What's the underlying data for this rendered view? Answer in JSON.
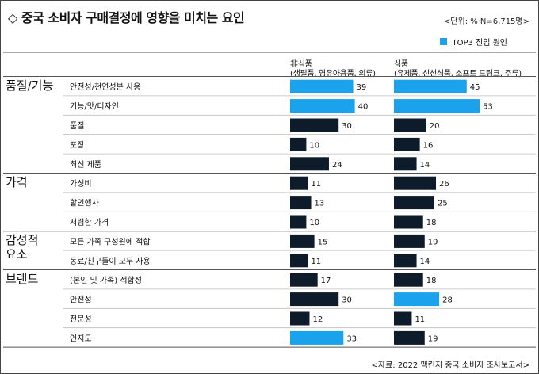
{
  "title": "◇ 중국 소비자 구매결정에 영향을 미치는 요인",
  "unit_note": "<단위: %·N=6,715명>",
  "legend": {
    "label": "TOP3 진입 원인",
    "color": "#1aa3ec"
  },
  "colors": {
    "top3": "#1aa3ec",
    "other": "#0d1b2a"
  },
  "columns": [
    {
      "line1": "非식품",
      "line2": "(생필품, 영유아용품, 의류)"
    },
    {
      "line1": "식품",
      "line2": "(유제품, 신선식품, 소프트 드링크, 주류)"
    }
  ],
  "source": "<자료: 2022 맥킨지 중국 소비자 조사보고서>",
  "chart_data": {
    "type": "bar",
    "groups": [
      {
        "name": "품질/기능",
        "items": [
          "안전성/천연성분 사용",
          "기능/맛/디자인",
          "품질",
          "포장",
          "최신 제품"
        ]
      },
      {
        "name": "가격",
        "items": [
          "가성비",
          "할인행사",
          "저렴한 가격"
        ]
      },
      {
        "name": "감성적\n요소",
        "items": [
          "모든 가족 구성원에 적합",
          "동료/친구들이 모두 사용"
        ]
      },
      {
        "name": "브랜드",
        "items": [
          "(본인 및 가족) 적합성",
          "안전성",
          "전문성",
          "인지도"
        ]
      }
    ],
    "categories": [
      "안전성/천연성분 사용",
      "기능/맛/디자인",
      "품질",
      "포장",
      "최신 제품",
      "가성비",
      "할인행사",
      "저렴한 가격",
      "모든 가족 구성원에 적합",
      "동료/친구들이 모두 사용",
      "(본인 및 가족) 적합성",
      "안전성",
      "전문성",
      "인지도"
    ],
    "series": [
      {
        "name": "非식품",
        "values": [
          39,
          40,
          30,
          10,
          24,
          11,
          13,
          10,
          15,
          11,
          17,
          30,
          12,
          33
        ],
        "top3": [
          true,
          true,
          false,
          false,
          false,
          false,
          false,
          false,
          false,
          false,
          false,
          false,
          false,
          true
        ]
      },
      {
        "name": "식품",
        "values": [
          45,
          53,
          20,
          16,
          14,
          26,
          25,
          18,
          19,
          14,
          18,
          28,
          11,
          19
        ],
        "top3": [
          true,
          true,
          false,
          false,
          false,
          false,
          false,
          false,
          false,
          false,
          false,
          true,
          false,
          false
        ]
      }
    ]
  }
}
